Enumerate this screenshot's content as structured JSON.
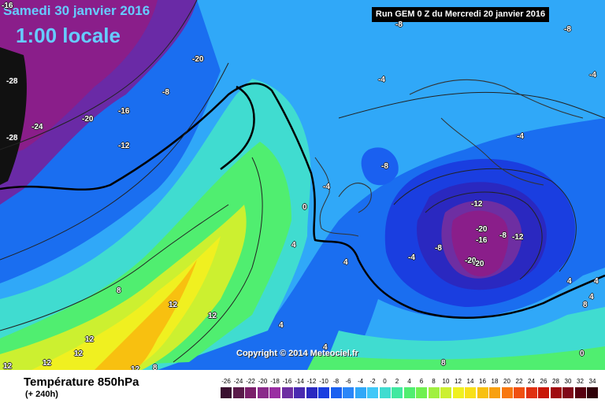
{
  "header": {
    "date_title": "Samedi 30 janvier 2016",
    "local_time": "1:00 locale",
    "run_info": "Run GEM 0 Z du Mercredi 20 janvier 2016"
  },
  "footer": {
    "variable_title": "Température 850hPa",
    "horizon": "(+ 240h)",
    "copyright": "Copyright © 2014 Meteociel.fr"
  },
  "legend": {
    "values": [
      "-26",
      "-24",
      "-22",
      "-20",
      "-18",
      "-16",
      "-14",
      "-12",
      "-10",
      "-8",
      "-6",
      "-4",
      "-2",
      "0",
      "2",
      "4",
      "6",
      "8",
      "10",
      "12",
      "14",
      "16",
      "18",
      "20",
      "22",
      "24",
      "26",
      "28",
      "30",
      "32",
      "34"
    ],
    "colors": [
      "#3a1030",
      "#5a1a4a",
      "#7a1e6a",
      "#8a2a8a",
      "#9a2ea2",
      "#6e2ea2",
      "#4a2ab0",
      "#2a28c0",
      "#1a3ee0",
      "#1a60f0",
      "#2a86f8",
      "#30a8f8",
      "#40c8f8",
      "#40dcd0",
      "#40e8a0",
      "#50ee70",
      "#70f050",
      "#a0f040",
      "#ccf030",
      "#f0f020",
      "#f8e018",
      "#f8c010",
      "#f8a010",
      "#f87810",
      "#f05010",
      "#e03010",
      "#c81808",
      "#a00c10",
      "#800818",
      "#580010",
      "#300008"
    ]
  },
  "isotherm_labels": [
    {
      "text": "-16"
    },
    {
      "text": "-28"
    },
    {
      "text": "-24"
    },
    {
      "text": "-28"
    },
    {
      "text": "-20"
    },
    {
      "text": "-16"
    },
    {
      "text": "-12"
    },
    {
      "text": "-20"
    },
    {
      "text": "-8"
    },
    {
      "text": "-8"
    },
    {
      "text": "-4"
    },
    {
      "text": "-8"
    },
    {
      "text": "-4"
    },
    {
      "text": "-4"
    },
    {
      "text": "-8"
    },
    {
      "text": "-4"
    },
    {
      "text": "0"
    },
    {
      "text": "-12"
    },
    {
      "text": "-20"
    },
    {
      "text": "-8"
    },
    {
      "text": "-12"
    },
    {
      "text": "-16"
    },
    {
      "text": "-20"
    },
    {
      "text": "-20"
    },
    {
      "text": "-4"
    },
    {
      "text": "-8"
    },
    {
      "text": "4"
    },
    {
      "text": "4"
    },
    {
      "text": "4"
    },
    {
      "text": "8"
    },
    {
      "text": "12"
    },
    {
      "text": "12"
    },
    {
      "text": "12"
    },
    {
      "text": "12"
    },
    {
      "text": "12"
    },
    {
      "text": "12"
    },
    {
      "text": "12"
    },
    {
      "text": "8"
    },
    {
      "text": "4"
    },
    {
      "text": "4"
    },
    {
      "text": "4"
    },
    {
      "text": "4"
    },
    {
      "text": "0"
    },
    {
      "text": "8"
    },
    {
      "text": "8"
    }
  ]
}
